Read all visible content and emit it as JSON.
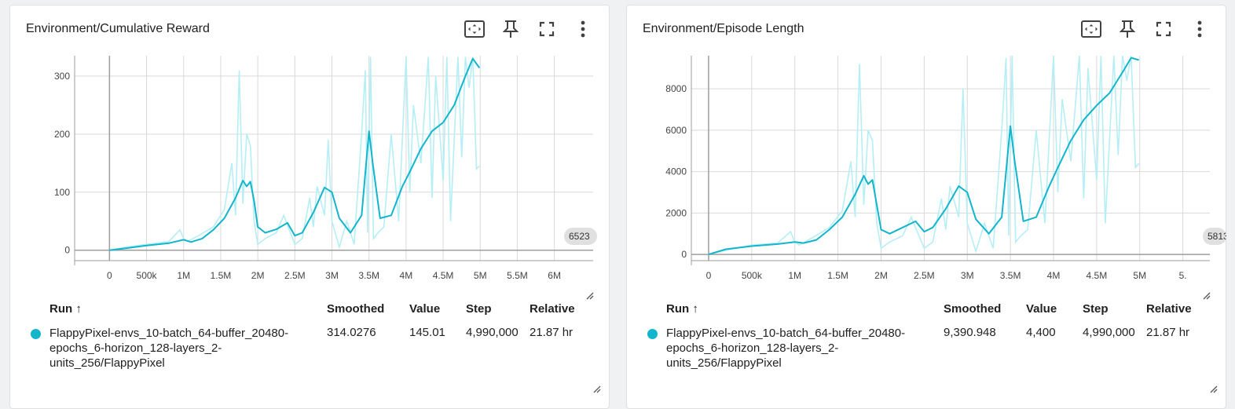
{
  "colors": {
    "smoothed_line": "#12b5cb",
    "raw_line": "#b6eef5",
    "grid": "#d9d9d9",
    "run_dot": "#12b5cb"
  },
  "icons": {
    "fit_domain": "fit-to-data-icon",
    "pin": "pin-icon",
    "fullscreen": "fullscreen-icon",
    "more": "more-vert-icon"
  },
  "table_headers": {
    "run": "Run ↑",
    "smoothed": "Smoothed",
    "value": "Value",
    "step": "Step",
    "relative": "Relative"
  },
  "cards": [
    {
      "title": "Environment/Cumulative Reward",
      "x_overflow_label": "6523",
      "run": {
        "name": "FlappyPixel-envs_10-batch_64-buffer_20480-epochs_6-horizon_128-layers_2-units_256/FlappyPixel",
        "smoothed": "314.0276",
        "value": "145.01",
        "step": "4,990,000",
        "relative": "21.87 hr"
      },
      "chart_data": {
        "type": "line",
        "title": "Environment/Cumulative Reward",
        "xlabel": "",
        "ylabel": "",
        "x_ticks": [
          "0",
          "500k",
          "1M",
          "1.5M",
          "2M",
          "2.5M",
          "3M",
          "3.5M",
          "4M",
          "4.5M",
          "5M",
          "5.5M",
          "6M"
        ],
        "y_ticks": [
          "0",
          "100",
          "200",
          "300"
        ],
        "xlim": [
          -470000,
          6523000
        ],
        "ylim": [
          -18,
          335
        ],
        "series": [
          {
            "name": "smoothed",
            "x": [
              0,
              200000,
              500000,
              800000,
              1000000,
              1100000,
              1250000,
              1400000,
              1550000,
              1700000,
              1800000,
              1850000,
              1900000,
              1950000,
              2000000,
              2100000,
              2250000,
              2400000,
              2500000,
              2600000,
              2750000,
              2900000,
              3000000,
              3100000,
              3250000,
              3400000,
              3500000,
              3550000,
              3650000,
              3800000,
              3950000,
              4050000,
              4200000,
              4350000,
              4500000,
              4650000,
              4800000,
              4900000,
              4990000
            ],
            "y": [
              0,
              3,
              8,
              12,
              18,
              14,
              20,
              35,
              55,
              90,
              120,
              110,
              118,
              85,
              40,
              30,
              36,
              47,
              25,
              30,
              65,
              108,
              100,
              55,
              30,
              60,
              205,
              150,
              55,
              60,
              110,
              135,
              175,
              205,
              220,
              250,
              300,
              330,
              314
            ]
          },
          {
            "name": "raw",
            "x": [
              0,
              200000,
              500000,
              800000,
              950000,
              1000000,
              1050000,
              1200000,
              1400000,
              1550000,
              1650000,
              1700000,
              1750000,
              1800000,
              1850000,
              1900000,
              1950000,
              2000000,
              2100000,
              2250000,
              2350000,
              2500000,
              2600000,
              2700000,
              2750000,
              2800000,
              2900000,
              2950000,
              3000000,
              3100000,
              3200000,
              3300000,
              3400000,
              3450000,
              3480000,
              3520000,
              3560000,
              3620000,
              3700000,
              3800000,
              3900000,
              4000000,
              4050000,
              4100000,
              4200000,
              4300000,
              4350000,
              4400000,
              4500000,
              4550000,
              4600000,
              4700000,
              4750000,
              4800000,
              4850000,
              4900000,
              4950000,
              4990000
            ],
            "y": [
              0,
              5,
              10,
              15,
              35,
              20,
              15,
              25,
              40,
              70,
              150,
              60,
              310,
              80,
              200,
              180,
              50,
              10,
              20,
              30,
              60,
              10,
              20,
              90,
              40,
              110,
              60,
              190,
              50,
              5,
              50,
              10,
              200,
              310,
              30,
              333,
              20,
              30,
              40,
              200,
              50,
              333,
              100,
              250,
              150,
              333,
              90,
              300,
              120,
              333,
              50,
              333,
              160,
              333,
              280,
              333,
              140,
              145
            ]
          }
        ]
      }
    },
    {
      "title": "Environment/Episode Length",
      "x_overflow_label": "5813",
      "run": {
        "name": "FlappyPixel-envs_10-batch_64-buffer_20480-epochs_6-horizon_128-layers_2-units_256/FlappyPixel",
        "smoothed": "9,390.948",
        "value": "4,400",
        "step": "4,990,000",
        "relative": "21.87 hr"
      },
      "chart_data": {
        "type": "line",
        "title": "Environment/Episode Length",
        "xlabel": "",
        "ylabel": "",
        "x_ticks": [
          "0",
          "500k",
          "1M",
          "1.5M",
          "2M",
          "2.5M",
          "3M",
          "3.5M",
          "4M",
          "4.5M",
          "5M",
          "5."
        ],
        "y_ticks": [
          "0",
          "2000",
          "4000",
          "6000",
          "8000"
        ],
        "xlim": [
          -200000,
          5813000
        ],
        "ylim": [
          -300,
          9600
        ],
        "series": [
          {
            "name": "smoothed",
            "x": [
              0,
              200000,
              500000,
              800000,
              1000000,
              1100000,
              1250000,
              1400000,
              1550000,
              1700000,
              1800000,
              1850000,
              1900000,
              1950000,
              2000000,
              2100000,
              2250000,
              2400000,
              2500000,
              2600000,
              2750000,
              2900000,
              3000000,
              3100000,
              3250000,
              3400000,
              3500000,
              3550000,
              3650000,
              3800000,
              3950000,
              4050000,
              4200000,
              4350000,
              4500000,
              4650000,
              4800000,
              4900000,
              4990000
            ],
            "y": [
              0,
              250,
              400,
              500,
              600,
              550,
              700,
              1200,
              1800,
              2900,
              3800,
              3400,
              3600,
              2400,
              1200,
              1000,
              1300,
              1600,
              1100,
              1300,
              2200,
              3300,
              3000,
              1700,
              1000,
              1800,
              6200,
              4500,
              1600,
              1800,
              3300,
              4200,
              5500,
              6500,
              7200,
              7800,
              8800,
              9500,
              9391
            ]
          },
          {
            "name": "raw",
            "x": [
              0,
              200000,
              500000,
              800000,
              950000,
              1000000,
              1050000,
              1200000,
              1400000,
              1550000,
              1650000,
              1700000,
              1750000,
              1800000,
              1850000,
              1900000,
              1950000,
              2000000,
              2100000,
              2250000,
              2350000,
              2500000,
              2600000,
              2700000,
              2750000,
              2800000,
              2900000,
              2950000,
              3000000,
              3100000,
              3200000,
              3300000,
              3400000,
              3450000,
              3480000,
              3520000,
              3560000,
              3620000,
              3700000,
              3800000,
              3900000,
              4000000,
              4050000,
              4100000,
              4200000,
              4300000,
              4350000,
              4400000,
              4500000,
              4550000,
              4600000,
              4700000,
              4750000,
              4800000,
              4850000,
              4900000,
              4950000,
              4990000
            ],
            "y": [
              0,
              200,
              450,
              550,
              1100,
              600,
              450,
              800,
              1300,
              2100,
              4500,
              1800,
              9200,
              2400,
              6000,
              5500,
              1500,
              300,
              600,
              900,
              1800,
              300,
              600,
              2700,
              1200,
              3300,
              1800,
              8000,
              1500,
              150,
              1500,
              300,
              6000,
              9500,
              900,
              9600,
              600,
              900,
              1200,
              6000,
              1500,
              9600,
              3000,
              7500,
              4500,
              9600,
              2700,
              9000,
              3600,
              9600,
              1500,
              9600,
              4800,
              9600,
              8400,
              9600,
              4200,
              4400
            ]
          }
        ]
      }
    }
  ]
}
